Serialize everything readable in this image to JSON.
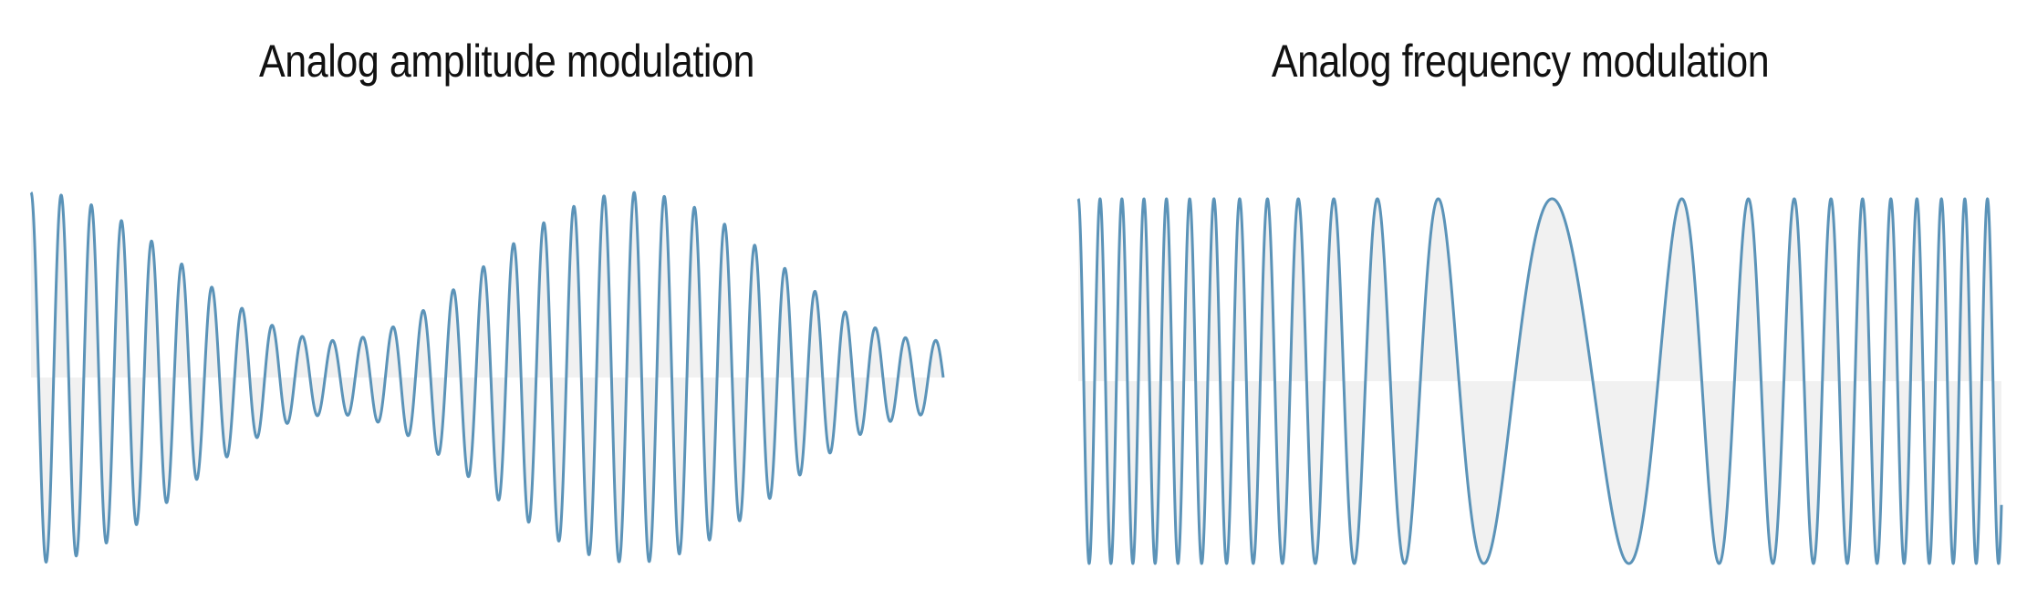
{
  "panels": {
    "am": {
      "title": "Analog amplitude modulation",
      "stroke_color": "#5b93b8"
    },
    "fm": {
      "title": "Analog frequency modulation",
      "stroke_color": "#5b93b8"
    }
  }
}
